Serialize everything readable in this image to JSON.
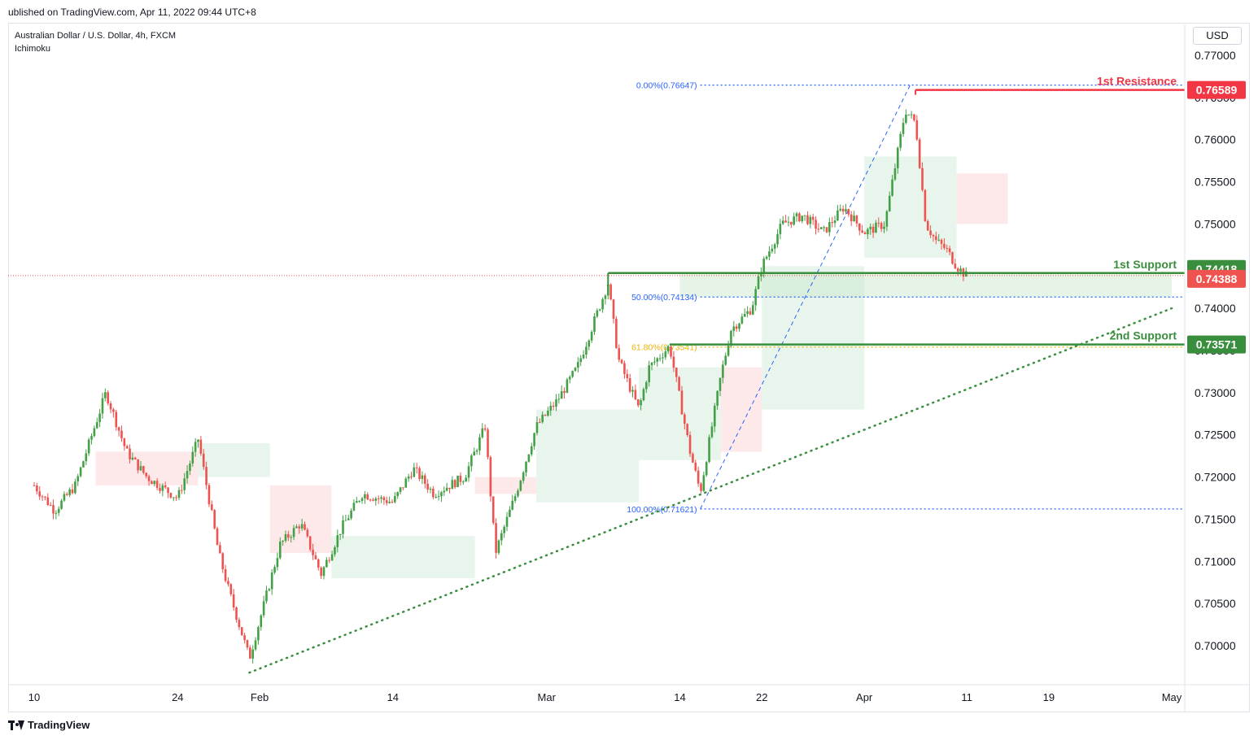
{
  "header": {
    "published_text": "ublished on TradingView.com, Apr 11, 2022 09:44 UTC+8"
  },
  "legend": {
    "symbol_text": "Australian Dollar / U.S. Dollar, 4h, FXCM",
    "indicator_text": "Ichimoku"
  },
  "currency_button": "USD",
  "footer": {
    "brand": "TradingView",
    "logo_icon": "tradingview-logo-icon"
  },
  "colors": {
    "up": "#26a69a",
    "up_candle": "#43a047",
    "down": "#ef5350",
    "support": "#388e3c",
    "resistance": "#f23645",
    "fib_blue": "#2962ff",
    "fib_gold": "#f0b400",
    "cloud_green": "#e6f4ea",
    "cloud_red": "#fde7e7"
  },
  "chart_data": {
    "type": "candlestick",
    "title": "Australian Dollar / U.S. Dollar, 4h, FXCM",
    "indicator": "Ichimoku",
    "x_axis": {
      "ticks": [
        {
          "label": "10",
          "date": "2022-01-10"
        },
        {
          "label": "24",
          "date": "2022-01-24"
        },
        {
          "label": "Feb",
          "date": "2022-02-01"
        },
        {
          "label": "14",
          "date": "2022-02-14"
        },
        {
          "label": "Mar",
          "date": "2022-03-01"
        },
        {
          "label": "14",
          "date": "2022-03-14"
        },
        {
          "label": "22",
          "date": "2022-03-22"
        },
        {
          "label": "Apr",
          "date": "2022-04-01"
        },
        {
          "label": "11",
          "date": "2022-04-11"
        },
        {
          "label": "19",
          "date": "2022-04-19"
        },
        {
          "label": "May",
          "date": "2022-05-01"
        }
      ],
      "range": [
        "2022-01-10",
        "2022-05-01"
      ]
    },
    "y_axis": {
      "ticks": [
        "0.77000",
        "0.76500",
        "0.76000",
        "0.75500",
        "0.75000",
        "0.74500",
        "0.74000",
        "0.73500",
        "0.73000",
        "0.72500",
        "0.72000",
        "0.71500",
        "0.71000",
        "0.70500",
        "0.70000"
      ],
      "ylim": [
        0.696,
        0.7705
      ]
    },
    "price_path": [
      {
        "date": "2022-01-10",
        "price": 0.719
      },
      {
        "date": "2022-01-12",
        "price": 0.716
      },
      {
        "date": "2022-01-14",
        "price": 0.719
      },
      {
        "date": "2022-01-17",
        "price": 0.73
      },
      {
        "date": "2022-01-19",
        "price": 0.723
      },
      {
        "date": "2022-01-21",
        "price": 0.72
      },
      {
        "date": "2022-01-24",
        "price": 0.7175
      },
      {
        "date": "2022-01-26",
        "price": 0.7245
      },
      {
        "date": "2022-01-28",
        "price": 0.711
      },
      {
        "date": "2022-01-29",
        "price": 0.7065
      },
      {
        "date": "2022-01-31",
        "price": 0.6985
      },
      {
        "date": "2022-02-03",
        "price": 0.712
      },
      {
        "date": "2022-02-05",
        "price": 0.7145
      },
      {
        "date": "2022-02-07",
        "price": 0.7085
      },
      {
        "date": "2022-02-09",
        "price": 0.714
      },
      {
        "date": "2022-02-11",
        "price": 0.718
      },
      {
        "date": "2022-02-14",
        "price": 0.717
      },
      {
        "date": "2022-02-16",
        "price": 0.721
      },
      {
        "date": "2022-02-18",
        "price": 0.718
      },
      {
        "date": "2022-02-21",
        "price": 0.72
      },
      {
        "date": "2022-02-23",
        "price": 0.726
      },
      {
        "date": "2022-02-24",
        "price": 0.711
      },
      {
        "date": "2022-02-26",
        "price": 0.718
      },
      {
        "date": "2022-02-28",
        "price": 0.726
      },
      {
        "date": "2022-03-02",
        "price": 0.729
      },
      {
        "date": "2022-03-04",
        "price": 0.733
      },
      {
        "date": "2022-03-07",
        "price": 0.743
      },
      {
        "date": "2022-03-08",
        "price": 0.734
      },
      {
        "date": "2022-03-10",
        "price": 0.728
      },
      {
        "date": "2022-03-11",
        "price": 0.733
      },
      {
        "date": "2022-03-13",
        "price": 0.7355
      },
      {
        "date": "2022-03-15",
        "price": 0.723
      },
      {
        "date": "2022-03-16",
        "price": 0.7182
      },
      {
        "date": "2022-03-18",
        "price": 0.732
      },
      {
        "date": "2022-03-19",
        "price": 0.7375
      },
      {
        "date": "2022-03-21",
        "price": 0.74
      },
      {
        "date": "2022-03-22",
        "price": 0.745
      },
      {
        "date": "2022-03-24",
        "price": 0.75
      },
      {
        "date": "2022-03-26",
        "price": 0.751
      },
      {
        "date": "2022-03-28",
        "price": 0.749
      },
      {
        "date": "2022-03-30",
        "price": 0.752
      },
      {
        "date": "2022-04-01",
        "price": 0.749
      },
      {
        "date": "2022-04-03",
        "price": 0.75
      },
      {
        "date": "2022-04-05",
        "price": 0.7635
      },
      {
        "date": "2022-04-06",
        "price": 0.762
      },
      {
        "date": "2022-04-07",
        "price": 0.75
      },
      {
        "date": "2022-04-08",
        "price": 0.748
      },
      {
        "date": "2022-04-09",
        "price": 0.747
      },
      {
        "date": "2022-04-10",
        "price": 0.745
      },
      {
        "date": "2022-04-11",
        "price": 0.7438
      }
    ],
    "levels": [
      {
        "label": "1st Resistance",
        "value": 0.76589,
        "value_label": "0.76589",
        "kind": "resistance"
      },
      {
        "label": "1st Support",
        "value": 0.74418,
        "value_label": "0.74418",
        "kind": "support"
      },
      {
        "label": "2nd Support",
        "value": 0.73571,
        "value_label": "0.73571",
        "kind": "support"
      }
    ],
    "current_price": {
      "value": 0.74388,
      "value_label": "0.74388"
    },
    "fibonacci": {
      "start": {
        "date": "2022-03-16",
        "price": 0.71621
      },
      "end": {
        "date": "2022-04-05",
        "price": 0.76647
      },
      "levels": [
        {
          "label": "0.00%(0.76647)",
          "value": 0.76647,
          "color": "#2962ff"
        },
        {
          "label": "50.00%(0.74134)",
          "value": 0.74134,
          "color": "#2962ff"
        },
        {
          "label": "61.80%(0.73541)",
          "value": 0.73541,
          "color": "#f0b400"
        },
        {
          "label": "100.00%(0.71621)",
          "value": 0.71621,
          "color": "#2962ff"
        }
      ]
    },
    "trendline": {
      "start": {
        "date": "2022-01-31",
        "price": 0.6968
      },
      "end": {
        "date": "2022-05-01",
        "price": 0.74
      }
    },
    "support_zone": {
      "from_date": "2022-03-14",
      "to_date": "2022-05-01",
      "low": 0.7413,
      "high": 0.7442
    },
    "ichimoku_cloud": [
      {
        "from": "2022-01-16",
        "to": "2022-01-26",
        "low": 0.719,
        "high": 0.723,
        "bias": "red"
      },
      {
        "from": "2022-01-26",
        "to": "2022-02-02",
        "low": 0.72,
        "high": 0.724,
        "bias": "green"
      },
      {
        "from": "2022-02-02",
        "to": "2022-02-08",
        "low": 0.711,
        "high": 0.719,
        "bias": "red"
      },
      {
        "from": "2022-02-08",
        "to": "2022-02-22",
        "low": 0.708,
        "high": 0.713,
        "bias": "green"
      },
      {
        "from": "2022-02-22",
        "to": "2022-02-28",
        "low": 0.718,
        "high": 0.72,
        "bias": "red"
      },
      {
        "from": "2022-02-28",
        "to": "2022-03-10",
        "low": 0.717,
        "high": 0.728,
        "bias": "green"
      },
      {
        "from": "2022-03-10",
        "to": "2022-03-18",
        "low": 0.722,
        "high": 0.733,
        "bias": "green"
      },
      {
        "from": "2022-03-18",
        "to": "2022-03-22",
        "low": 0.723,
        "high": 0.733,
        "bias": "red"
      },
      {
        "from": "2022-03-22",
        "to": "2022-04-01",
        "low": 0.728,
        "high": 0.745,
        "bias": "green"
      },
      {
        "from": "2022-04-01",
        "to": "2022-04-10",
        "low": 0.746,
        "high": 0.758,
        "bias": "green"
      },
      {
        "from": "2022-04-10",
        "to": "2022-04-15",
        "low": 0.75,
        "high": 0.756,
        "bias": "red"
      }
    ]
  }
}
